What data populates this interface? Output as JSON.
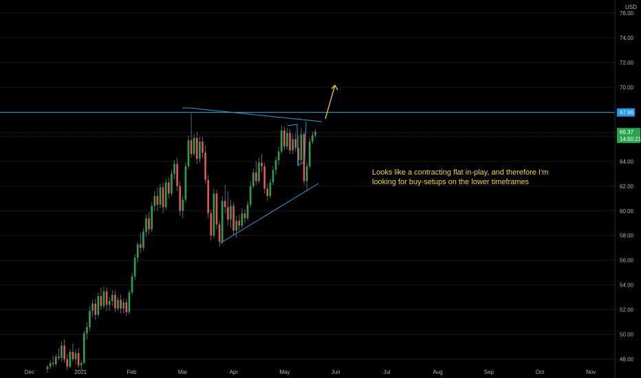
{
  "chart_data": {
    "type": "candlestick",
    "currency": "USD",
    "price_axis": {
      "min": 47.2,
      "max": 76.5,
      "ticks": [
        48,
        50,
        52,
        54,
        56,
        58,
        60,
        62,
        64,
        66,
        68,
        70,
        72,
        74,
        76
      ]
    },
    "tick_decimals": 2,
    "time_labels": [
      "Dec",
      "2021",
      "Feb",
      "Mar",
      "Apr",
      "May",
      "Jun",
      "Jul",
      "Aug",
      "Sep",
      "Oct",
      "Nov"
    ],
    "last_price": "66.37",
    "countdown": "14:50:21",
    "level_label": "67.96",
    "level_price": 67.96,
    "current_price": 66.37,
    "annotation_lines": [
      "Looks like a contracting flat in-play, and therefore I'm",
      "looking for buy-setups on the lower timeframes"
    ],
    "candles": [
      [
        47.2,
        47.5,
        46.9,
        47.4
      ],
      [
        47.4,
        47.9,
        47.2,
        47.7
      ],
      [
        47.7,
        48.3,
        47.4,
        47.6
      ],
      [
        47.6,
        48.4,
        47.4,
        48.2
      ],
      [
        48.2,
        48.9,
        47.9,
        48.1
      ],
      [
        48.1,
        49.4,
        47.8,
        49.1
      ],
      [
        49.1,
        49.6,
        47.7,
        48.0
      ],
      [
        48.0,
        48.4,
        47.1,
        47.4
      ],
      [
        47.4,
        48.8,
        47.3,
        48.6
      ],
      [
        48.6,
        49.3,
        47.8,
        48.0
      ],
      [
        48.0,
        48.8,
        47.6,
        48.5
      ],
      [
        48.5,
        48.9,
        47.3,
        47.5
      ],
      [
        47.5,
        47.9,
        47.1,
        47.7
      ],
      [
        47.7,
        50.3,
        47.6,
        50.1
      ],
      [
        50.1,
        51.0,
        49.6,
        50.6
      ],
      [
        50.6,
        52.3,
        50.3,
        51.9
      ],
      [
        51.9,
        52.8,
        51.4,
        52.5
      ],
      [
        52.5,
        52.9,
        51.2,
        51.6
      ],
      [
        51.6,
        53.4,
        51.4,
        53.1
      ],
      [
        53.1,
        53.8,
        52.0,
        52.3
      ],
      [
        52.3,
        53.9,
        52.1,
        53.5
      ],
      [
        53.5,
        53.8,
        51.9,
        52.4
      ],
      [
        52.4,
        53.0,
        51.9,
        52.7
      ],
      [
        52.7,
        53.6,
        52.3,
        53.2
      ],
      [
        53.2,
        53.6,
        51.8,
        52.1
      ],
      [
        52.1,
        53.0,
        51.9,
        52.8
      ],
      [
        52.8,
        53.2,
        51.7,
        52.1
      ],
      [
        52.1,
        52.9,
        51.7,
        52.6
      ],
      [
        52.6,
        52.9,
        51.5,
        51.8
      ],
      [
        51.8,
        53.6,
        51.6,
        53.4
      ],
      [
        53.4,
        55.0,
        53.2,
        54.7
      ],
      [
        54.7,
        56.5,
        54.4,
        56.2
      ],
      [
        56.2,
        57.5,
        55.8,
        57.3
      ],
      [
        57.3,
        58.2,
        56.6,
        57.0
      ],
      [
        57.0,
        58.6,
        56.8,
        58.3
      ],
      [
        58.3,
        59.7,
        57.9,
        59.4
      ],
      [
        59.4,
        59.9,
        58.1,
        58.5
      ],
      [
        58.5,
        60.7,
        58.3,
        60.4
      ],
      [
        60.4,
        61.6,
        60.0,
        61.2
      ],
      [
        61.2,
        61.9,
        60.0,
        60.5
      ],
      [
        60.5,
        62.2,
        60.2,
        61.9
      ],
      [
        61.9,
        62.3,
        59.8,
        60.3
      ],
      [
        60.3,
        62.6,
        60.1,
        62.3
      ],
      [
        62.3,
        62.7,
        61.0,
        61.4
      ],
      [
        61.4,
        63.3,
        61.2,
        63.0
      ],
      [
        63.0,
        64.1,
        62.6,
        63.8
      ],
      [
        63.8,
        64.3,
        61.6,
        62.0
      ],
      [
        62.0,
        62.4,
        59.6,
        60.0
      ],
      [
        60.0,
        61.2,
        59.4,
        60.9
      ],
      [
        60.9,
        63.9,
        60.7,
        63.6
      ],
      [
        63.6,
        66.1,
        63.4,
        65.7
      ],
      [
        65.7,
        67.9,
        64.3,
        64.6
      ],
      [
        64.6,
        66.2,
        64.4,
        65.9
      ],
      [
        65.9,
        66.4,
        63.8,
        64.2
      ],
      [
        64.2,
        66.0,
        63.9,
        65.6
      ],
      [
        65.6,
        66.0,
        64.3,
        64.7
      ],
      [
        64.7,
        65.3,
        62.2,
        62.5
      ],
      [
        62.5,
        62.9,
        59.4,
        59.8
      ],
      [
        59.8,
        60.1,
        57.6,
        58.0
      ],
      [
        58.0,
        61.8,
        57.8,
        61.4
      ],
      [
        61.4,
        61.7,
        58.5,
        58.9
      ],
      [
        58.9,
        59.2,
        57.1,
        57.5
      ],
      [
        57.5,
        61.2,
        57.3,
        60.8
      ],
      [
        60.8,
        62.1,
        59.8,
        60.3
      ],
      [
        60.3,
        61.6,
        58.8,
        59.3
      ],
      [
        59.3,
        60.9,
        58.6,
        60.4
      ],
      [
        60.4,
        60.7,
        58.0,
        58.4
      ],
      [
        58.4,
        59.6,
        57.8,
        59.2
      ],
      [
        59.2,
        59.7,
        58.4,
        58.8
      ],
      [
        58.8,
        60.2,
        58.6,
        59.8
      ],
      [
        59.8,
        60.1,
        59.0,
        59.4
      ],
      [
        59.4,
        60.8,
        59.2,
        60.5
      ],
      [
        60.5,
        62.4,
        60.3,
        62.0
      ],
      [
        62.0,
        63.4,
        61.8,
        63.1
      ],
      [
        63.1,
        64.0,
        62.1,
        62.4
      ],
      [
        62.4,
        64.3,
        62.2,
        63.9
      ],
      [
        63.9,
        64.6,
        63.1,
        63.6
      ],
      [
        63.6,
        63.9,
        61.4,
        61.8
      ],
      [
        61.8,
        62.2,
        60.8,
        61.2
      ],
      [
        61.2,
        62.6,
        61.0,
        62.3
      ],
      [
        62.3,
        63.6,
        62.1,
        63.3
      ],
      [
        63.3,
        64.4,
        62.9,
        64.1
      ],
      [
        64.1,
        65.2,
        63.7,
        64.8
      ],
      [
        64.8,
        66.9,
        64.6,
        66.5
      ],
      [
        66.5,
        66.8,
        64.9,
        65.2
      ],
      [
        65.2,
        66.7,
        65.0,
        66.3
      ],
      [
        66.3,
        66.6,
        64.6,
        64.9
      ],
      [
        64.9,
        66.2,
        64.6,
        65.8
      ],
      [
        65.8,
        66.3,
        64.8,
        65.1
      ],
      [
        65.1,
        66.1,
        63.7,
        64.1
      ],
      [
        64.1,
        66.7,
        63.9,
        66.2
      ],
      [
        66.2,
        66.4,
        62.1,
        62.4
      ],
      [
        62.4,
        63.9,
        61.6,
        63.6
      ],
      [
        63.6,
        65.9,
        63.4,
        65.6
      ],
      [
        65.6,
        66.4,
        65.4,
        66.1
      ],
      [
        66.1,
        66.6,
        65.9,
        66.4
      ]
    ]
  }
}
